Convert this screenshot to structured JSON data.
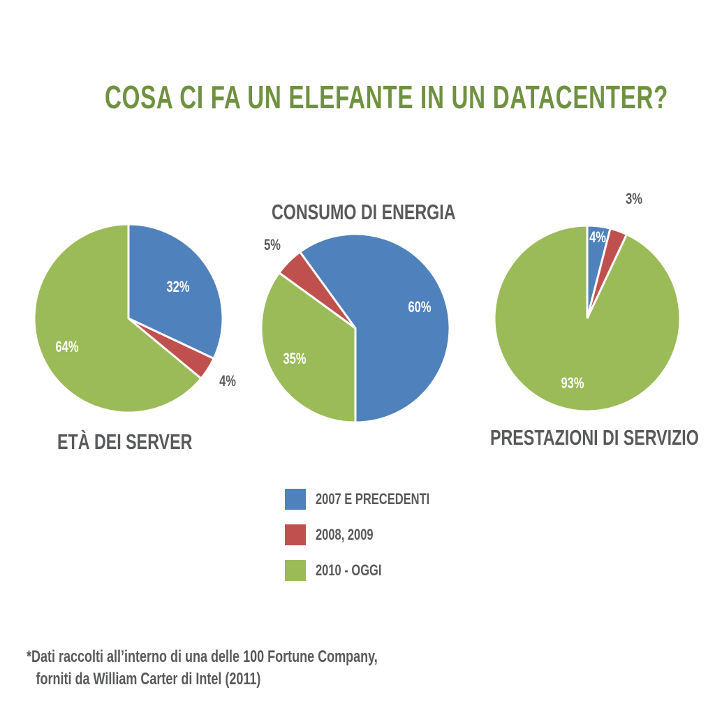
{
  "title": "COSA CI FA UN ELEFANTE IN UN DATACENTER?",
  "colors": {
    "blue": "#4f81bd",
    "red": "#c0504d",
    "green": "#9bbb59",
    "title": "#6f9140"
  },
  "legend": [
    {
      "label": "2007 E PRECEDENTI",
      "color": "#4f81bd"
    },
    {
      "label": "2008, 2009",
      "color": "#c0504d"
    },
    {
      "label": "2010 - OGGI",
      "color": "#9bbb59"
    }
  ],
  "chart_data": [
    {
      "type": "pie",
      "title": "ETÀ DEI SERVER",
      "categories": [
        "2007 E PRECEDENTI",
        "2008, 2009",
        "2010 - OGGI"
      ],
      "values": [
        32,
        4,
        64
      ],
      "labels": [
        "32%",
        "4%",
        "64%"
      ]
    },
    {
      "type": "pie",
      "title": "CONSUMO DI ENERGIA",
      "categories": [
        "2007 E PRECEDENTI",
        "2008, 2009",
        "2010 - OGGI"
      ],
      "values": [
        60,
        5,
        35
      ],
      "labels": [
        "60%",
        "5%",
        "35%"
      ]
    },
    {
      "type": "pie",
      "title": "PRESTAZIONI DI SERVIZIO",
      "categories": [
        "2007 E PRECEDENTI",
        "2008, 2009",
        "2010 - OGGI"
      ],
      "values": [
        4,
        3,
        93
      ],
      "labels": [
        "4%",
        "3%",
        "93%"
      ]
    }
  ],
  "footnote": [
    "*Dati raccolti all’interno di una delle 100 Fortune Company,",
    "forniti da William Carter di Intel (2011)"
  ]
}
